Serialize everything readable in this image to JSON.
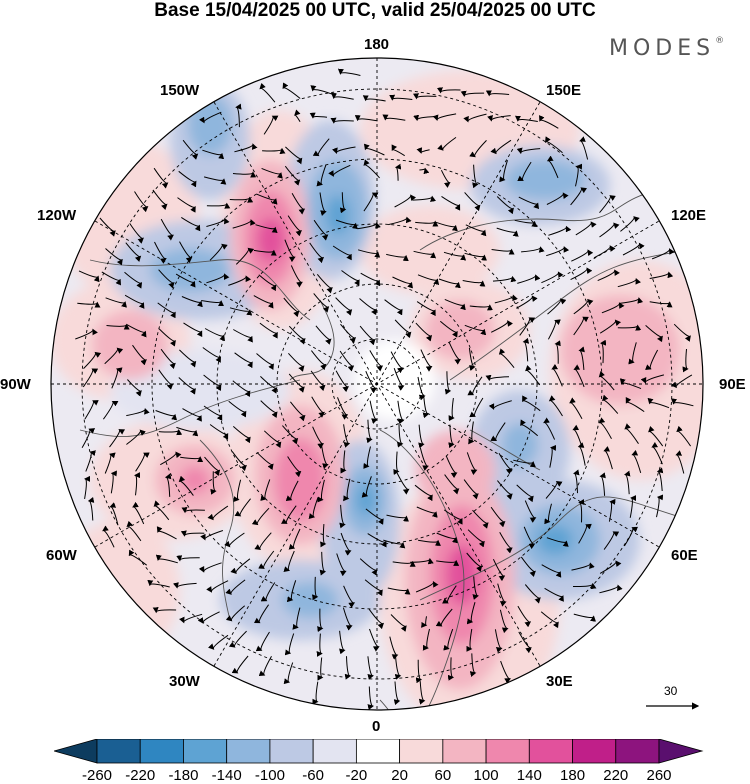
{
  "header": {
    "title": "Base 15/04/2025 00 UTC, valid 25/04/2025 00 UTC",
    "brand": "MODES"
  },
  "map": {
    "projection": "north-polar-stereographic",
    "longitude_labels": {
      "top": "180",
      "top_right": "150E",
      "right_upper": "120E",
      "right": "90E",
      "right_lower": "60E",
      "bottom_right": "30E",
      "bottom": "0",
      "bottom_left": "30W",
      "left_lower": "60W",
      "left": "90W",
      "left_upper": "120W",
      "top_left": "150W"
    },
    "vector_reference": {
      "value": "30"
    },
    "colors": {
      "negative_max": "#0e3f66",
      "negative_mid": "#8eb1db",
      "neutral": "#ffffff",
      "positive_mid": "#f48fb8",
      "positive_max": "#56106f",
      "coast": "#555555",
      "graticule": "#000000"
    }
  },
  "colorbar": {
    "ticks": [
      "-260",
      "-220",
      "-180",
      "-140",
      "-100",
      "-60",
      "-20",
      "20",
      "60",
      "100",
      "140",
      "180",
      "220",
      "260"
    ],
    "bin_colors": [
      "#0d3c5f",
      "#1a5f93",
      "#2f86c1",
      "#5ea3d3",
      "#8fb6dd",
      "#bdc9e4",
      "#e3e4f1",
      "#ffffff",
      "#f8dada",
      "#f3b5c2",
      "#ef87ad",
      "#e2519c",
      "#c01f89",
      "#8d147e",
      "#5a0f6e"
    ]
  }
}
